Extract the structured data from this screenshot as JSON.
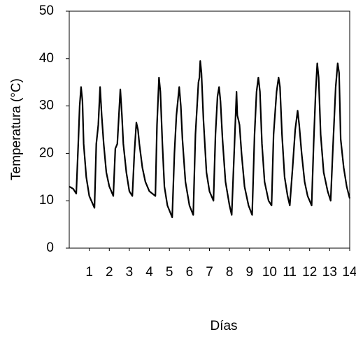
{
  "chart_data": {
    "type": "line",
    "x_label": "Días",
    "y_label": "Temperatura (°C)",
    "xlim": [
      0,
      14
    ],
    "xticks": [
      1,
      2,
      3,
      4,
      5,
      6,
      7,
      8,
      9,
      10,
      11,
      12,
      13,
      14
    ],
    "ylim": [
      0,
      50
    ],
    "yticks": [
      0,
      10,
      20,
      30,
      40,
      50
    ],
    "grid": false,
    "series": [
      {
        "color": "#000000",
        "x": [
          0,
          0.2,
          0.35,
          0.45,
          0.52,
          0.59,
          0.66,
          0.72,
          0.85,
          1.0,
          1.26,
          1.35,
          1.45,
          1.54,
          1.62,
          1.72,
          1.85,
          2.0,
          2.2,
          2.3,
          2.4,
          2.55,
          2.63,
          2.7,
          2.85,
          3.0,
          3.15,
          3.25,
          3.35,
          3.43,
          3.5,
          3.65,
          3.8,
          4.0,
          4.3,
          4.38,
          4.48,
          4.55,
          4.65,
          4.75,
          4.9,
          5.14,
          5.25,
          5.35,
          5.49,
          5.57,
          5.65,
          5.8,
          6.0,
          6.19,
          6.3,
          6.45,
          6.5,
          6.54,
          6.6,
          6.7,
          6.85,
          7.0,
          7.2,
          7.3,
          7.4,
          7.48,
          7.55,
          7.65,
          7.8,
          8.0,
          8.11,
          8.25,
          8.35,
          8.39,
          8.45,
          8.5,
          8.6,
          8.75,
          8.95,
          9.13,
          9.25,
          9.35,
          9.44,
          9.52,
          9.62,
          9.75,
          9.95,
          10.1,
          10.2,
          10.35,
          10.45,
          10.52,
          10.62,
          10.75,
          10.9,
          11.01,
          11.15,
          11.28,
          11.4,
          11.48,
          11.6,
          11.75,
          11.9,
          12.1,
          12.2,
          12.3,
          12.38,
          12.45,
          12.55,
          12.7,
          12.9,
          13.05,
          13.15,
          13.3,
          13.4,
          13.47,
          13.55,
          13.7,
          13.85,
          14.0
        ],
        "values": [
          13,
          12.5,
          11.5,
          22,
          30,
          34,
          31,
          22,
          15,
          11,
          8.5,
          22,
          26,
          34,
          28,
          22,
          16,
          13,
          11,
          21,
          22,
          33.5,
          28,
          22,
          16,
          12,
          11,
          20,
          26.5,
          25,
          22,
          17,
          14,
          12,
          11,
          26,
          36,
          33,
          22,
          13,
          9,
          6.5,
          20,
          28,
          34,
          30,
          23,
          14,
          9,
          7,
          24,
          35,
          36,
          39.5,
          37,
          27,
          16,
          12,
          10,
          24,
          32,
          34,
          31,
          23,
          14,
          9,
          7,
          22,
          33,
          28,
          27,
          26,
          20,
          13,
          9,
          7,
          24,
          33,
          36,
          33,
          22,
          14,
          10,
          9,
          24,
          33,
          36,
          34,
          24,
          15,
          11,
          9,
          17,
          25,
          29,
          26,
          20,
          14,
          11,
          9,
          22,
          33,
          39,
          36,
          24,
          16,
          12,
          10,
          20,
          34,
          39,
          37,
          23,
          17,
          13,
          10.5
        ]
      }
    ]
  }
}
